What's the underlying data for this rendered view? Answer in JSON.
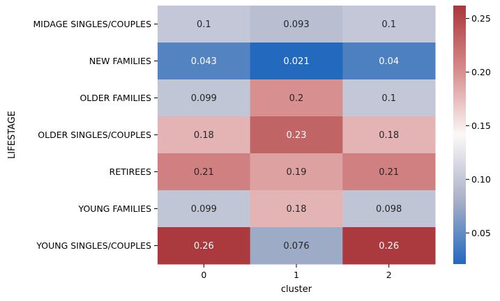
{
  "chart_data": {
    "type": "heatmap",
    "title": "",
    "xlabel": "cluster",
    "ylabel": "LIFESTAGE",
    "x_categories": [
      "0",
      "1",
      "2"
    ],
    "y_categories": [
      "MIDAGE SINGLES/COUPLES",
      "NEW FAMILIES",
      "OLDER FAMILIES",
      "OLDER SINGLES/COUPLES",
      "RETIREES",
      "YOUNG FAMILIES",
      "YOUNG SINGLES/COUPLES"
    ],
    "values": [
      [
        0.1,
        0.093,
        0.1
      ],
      [
        0.043,
        0.021,
        0.04
      ],
      [
        0.099,
        0.2,
        0.1
      ],
      [
        0.18,
        0.23,
        0.18
      ],
      [
        0.21,
        0.19,
        0.21
      ],
      [
        0.099,
        0.18,
        0.098
      ],
      [
        0.26,
        0.076,
        0.26
      ]
    ],
    "labels": [
      [
        "0.1",
        "0.093",
        "0.1"
      ],
      [
        "0.043",
        "0.021",
        "0.04"
      ],
      [
        "0.099",
        "0.2",
        "0.1"
      ],
      [
        "0.18",
        "0.23",
        "0.18"
      ],
      [
        "0.21",
        "0.19",
        "0.21"
      ],
      [
        "0.099",
        "0.18",
        "0.098"
      ],
      [
        "0.26",
        "0.076",
        "0.26"
      ]
    ],
    "colormap": "vlag",
    "color_stops": [
      "#2369bd",
      "#a9b1c8",
      "#fcf8f8",
      "#d68c8c",
      "#a9373b"
    ],
    "vmin": 0.021,
    "vmax": 0.262,
    "colorbar": {
      "ticks": [
        0.05,
        0.1,
        0.15,
        0.2,
        0.25
      ],
      "tick_labels": [
        "0.05",
        "0.10",
        "0.15",
        "0.20",
        "0.25"
      ],
      "placement": "right"
    },
    "annotation_colors": {
      "dark_text": "#262626",
      "light_text": "#ffffff"
    }
  }
}
